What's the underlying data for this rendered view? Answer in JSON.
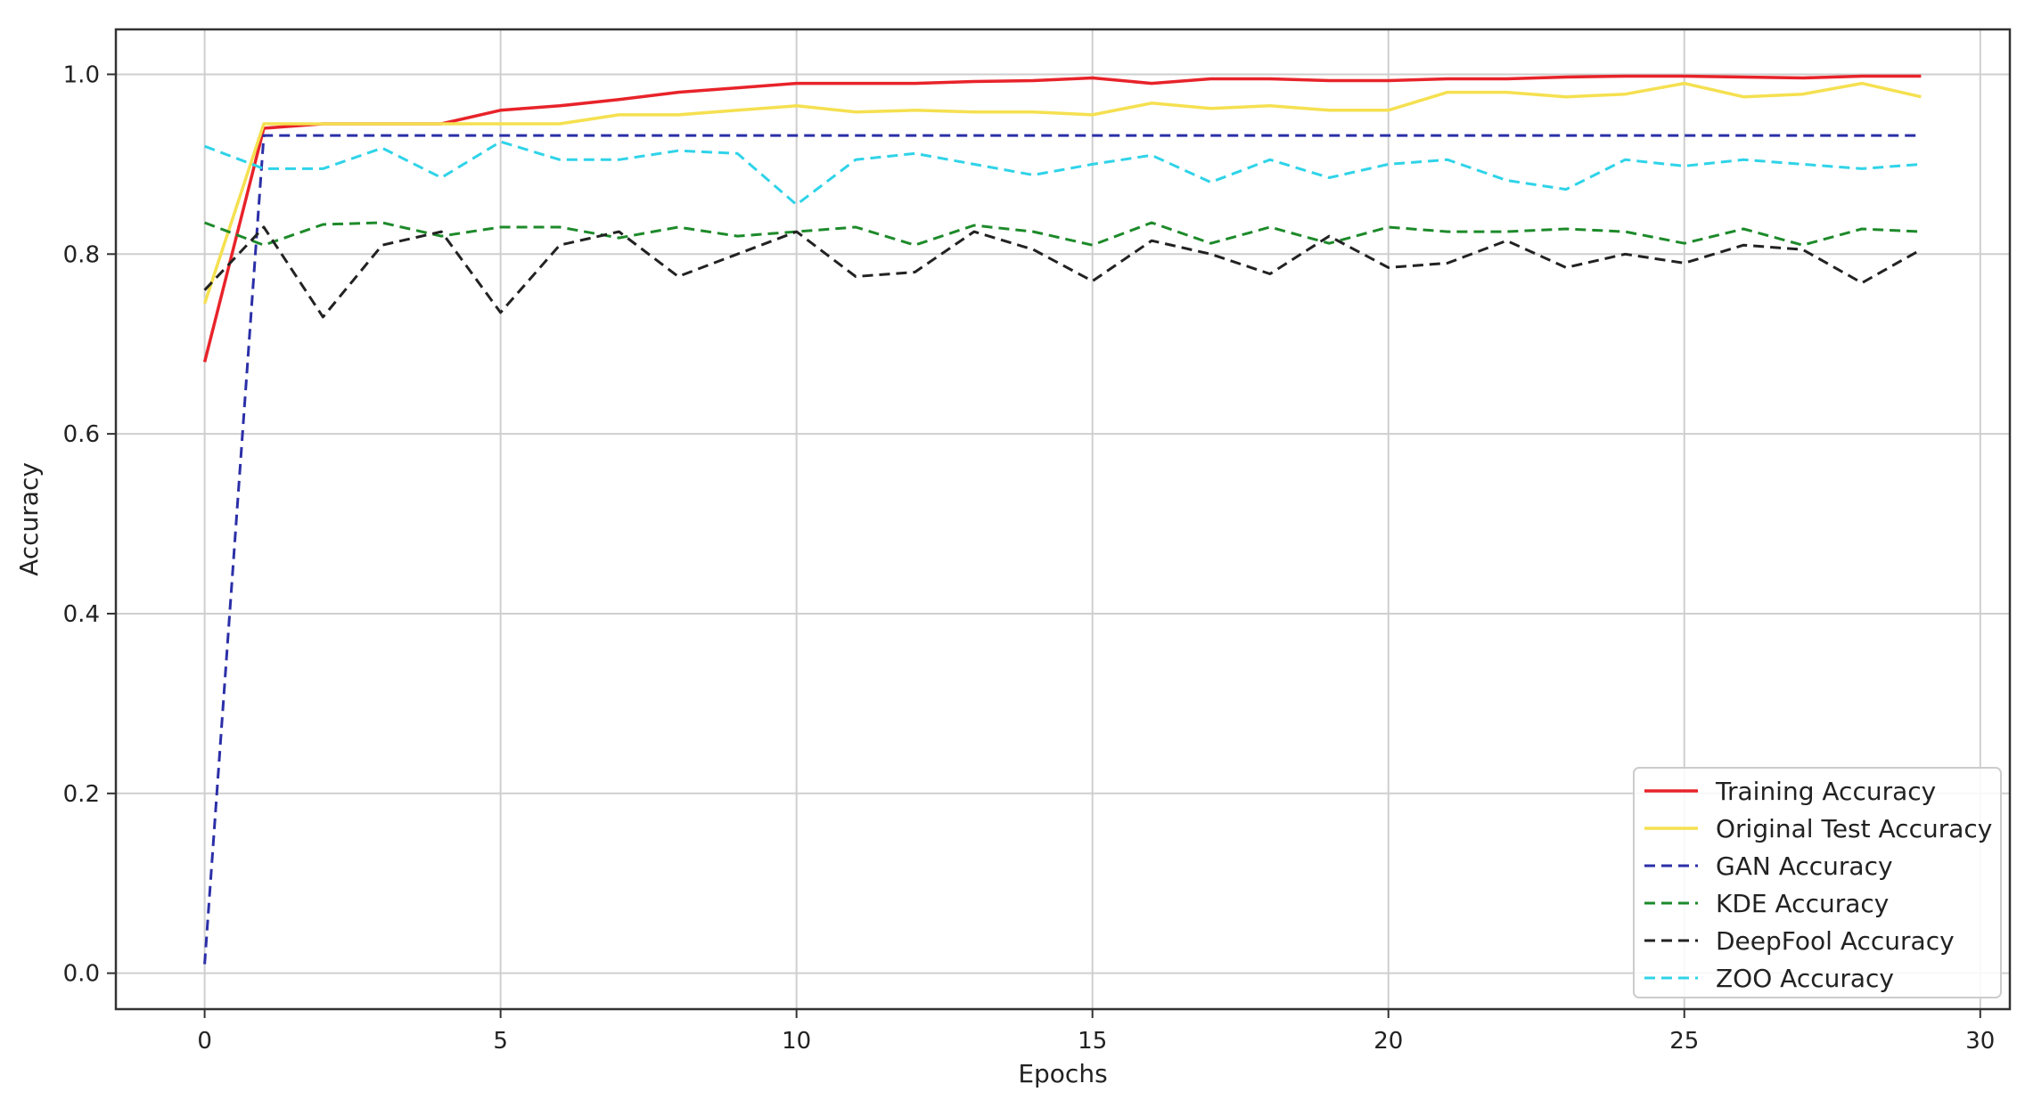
{
  "chart_data": {
    "type": "line",
    "title": "",
    "xlabel": "Epochs",
    "ylabel": "Accuracy",
    "xlim": [
      -1.5,
      30.5
    ],
    "ylim": [
      -0.04,
      1.05
    ],
    "xticks": [
      0,
      5,
      10,
      15,
      20,
      25,
      30
    ],
    "yticks": [
      0.0,
      0.2,
      0.4,
      0.6,
      0.8,
      1.0
    ],
    "xtick_labels": [
      "0",
      "5",
      "10",
      "15",
      "20",
      "25",
      "30"
    ],
    "ytick_labels": [
      "0.0",
      "0.2",
      "0.4",
      "0.6",
      "0.8",
      "1.0"
    ],
    "grid": true,
    "legend_position": "bottom-right",
    "x": [
      0,
      1,
      2,
      3,
      4,
      5,
      6,
      7,
      8,
      9,
      10,
      11,
      12,
      13,
      14,
      15,
      16,
      17,
      18,
      19,
      20,
      21,
      22,
      23,
      24,
      25,
      26,
      27,
      28,
      29
    ],
    "series": [
      {
        "name": "Training Accuracy",
        "color": "#e8232a",
        "dash": "solid",
        "values": [
          0.68,
          0.94,
          0.945,
          0.945,
          0.945,
          0.96,
          0.965,
          0.972,
          0.98,
          0.985,
          0.99,
          0.99,
          0.99,
          0.992,
          0.993,
          0.996,
          0.99,
          0.995,
          0.995,
          0.993,
          0.993,
          0.995,
          0.995,
          0.997,
          0.998,
          0.998,
          0.997,
          0.996,
          0.998,
          0.998
        ]
      },
      {
        "name": "Original Test Accuracy",
        "color": "#f5e050",
        "dash": "solid",
        "values": [
          0.745,
          0.945,
          0.945,
          0.945,
          0.945,
          0.945,
          0.945,
          0.955,
          0.955,
          0.96,
          0.965,
          0.958,
          0.96,
          0.958,
          0.958,
          0.955,
          0.968,
          0.962,
          0.965,
          0.96,
          0.96,
          0.98,
          0.98,
          0.975,
          0.978,
          0.99,
          0.975,
          0.978,
          0.99,
          0.975
        ]
      },
      {
        "name": "GAN Accuracy",
        "color": "#2b2fa8",
        "dash": "dashed",
        "values": [
          0.01,
          0.932,
          0.932,
          0.932,
          0.932,
          0.932,
          0.932,
          0.932,
          0.932,
          0.932,
          0.932,
          0.932,
          0.932,
          0.932,
          0.932,
          0.932,
          0.932,
          0.932,
          0.932,
          0.932,
          0.932,
          0.932,
          0.932,
          0.932,
          0.932,
          0.932,
          0.932,
          0.932,
          0.932,
          0.932
        ]
      },
      {
        "name": "KDE Accuracy",
        "color": "#1d8a2a",
        "dash": "dashed",
        "values": [
          0.835,
          0.81,
          0.833,
          0.835,
          0.82,
          0.83,
          0.83,
          0.818,
          0.83,
          0.82,
          0.825,
          0.83,
          0.81,
          0.832,
          0.825,
          0.81,
          0.835,
          0.812,
          0.83,
          0.812,
          0.83,
          0.825,
          0.825,
          0.828,
          0.825,
          0.812,
          0.828,
          0.81,
          0.828,
          0.825
        ]
      },
      {
        "name": "DeepFool Accuracy",
        "color": "#222222",
        "dash": "dashed",
        "values": [
          0.76,
          0.83,
          0.73,
          0.81,
          0.825,
          0.735,
          0.81,
          0.825,
          0.775,
          0.8,
          0.825,
          0.775,
          0.78,
          0.825,
          0.805,
          0.77,
          0.815,
          0.8,
          0.778,
          0.82,
          0.785,
          0.79,
          0.815,
          0.785,
          0.8,
          0.79,
          0.81,
          0.805,
          0.768,
          0.805
        ]
      },
      {
        "name": "ZOO Accuracy",
        "color": "#2fd3e8",
        "dash": "dashed",
        "values": [
          0.92,
          0.895,
          0.895,
          0.918,
          0.885,
          0.925,
          0.905,
          0.905,
          0.915,
          0.912,
          0.855,
          0.905,
          0.912,
          0.9,
          0.888,
          0.9,
          0.91,
          0.88,
          0.905,
          0.885,
          0.9,
          0.905,
          0.882,
          0.872,
          0.905,
          0.898,
          0.905,
          0.9,
          0.895,
          0.9
        ]
      }
    ]
  }
}
